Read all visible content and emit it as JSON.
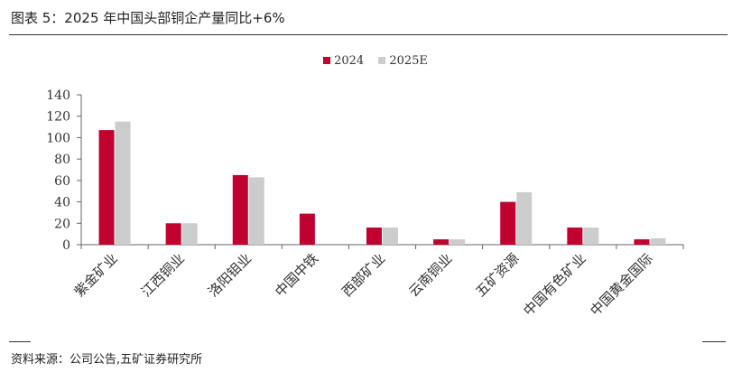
{
  "header": {
    "title": "图表 5：2025 年中国头部铜企产量同比+6%"
  },
  "footer": {
    "source": "资料来源：公司公告,五矿证券研究所"
  },
  "chart_data": {
    "type": "bar",
    "title": "",
    "xlabel": "",
    "ylabel": "",
    "ylim": [
      0,
      140
    ],
    "yticks": [
      0,
      20,
      40,
      60,
      80,
      100,
      120,
      140
    ],
    "grid": false,
    "legend_position": "top-center",
    "categories": [
      "紫金矿业",
      "江西铜业",
      "洛阳钼业",
      "中国中铁",
      "西部矿业",
      "云南铜业",
      "五矿资源",
      "中国有色矿业",
      "中国黄金国际"
    ],
    "series": [
      {
        "name": "2024",
        "color": "#c0002f",
        "values": [
          107,
          20,
          65,
          29,
          16,
          5,
          40,
          16,
          5
        ]
      },
      {
        "name": "2025E",
        "color": "#cccccc",
        "values": [
          115,
          20,
          63,
          null,
          16,
          5,
          49,
          16,
          6
        ]
      }
    ]
  }
}
